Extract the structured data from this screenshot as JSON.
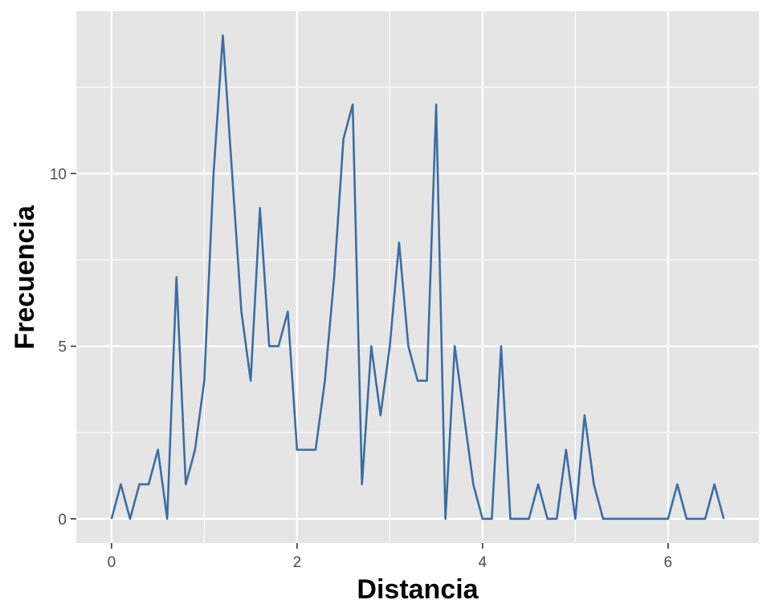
{
  "chart_data": {
    "type": "line",
    "title": "",
    "xlabel": "Distancia",
    "ylabel": "Frecuencia",
    "xlim": [
      -0.38,
      6.98
    ],
    "ylim": [
      -0.7,
      14.7
    ],
    "x_ticks": [
      0,
      2,
      4,
      6
    ],
    "y_ticks": [
      0,
      5,
      10
    ],
    "x_minor_ticks": [
      1,
      3,
      5
    ],
    "y_minor_ticks": [
      2.5,
      7.5,
      12.5
    ],
    "grid": true,
    "legend": "none",
    "colors": {
      "line": "#3a6ea5",
      "panel": "#e5e5e5",
      "grid": "#ffffff",
      "tick_text": "#4d4d4d"
    },
    "series": [
      {
        "x": [
          0,
          0.1,
          0.2,
          0.3,
          0.4,
          0.5,
          0.6,
          0.7,
          0.8,
          0.9,
          1.0,
          1.1,
          1.2,
          1.3,
          1.4,
          1.5,
          1.6,
          1.7,
          1.8,
          1.9,
          2.0,
          2.1,
          2.2,
          2.3,
          2.4,
          2.5,
          2.6,
          2.7,
          2.8,
          2.9,
          3.0,
          3.1,
          3.2,
          3.3,
          3.4,
          3.5,
          3.6,
          3.7,
          3.8,
          3.9,
          4.0,
          4.1,
          4.2,
          4.3,
          4.4,
          4.5,
          4.6,
          4.7,
          4.8,
          4.9,
          5.0,
          5.1,
          5.2,
          5.3,
          5.4,
          5.5,
          5.6,
          5.7,
          5.8,
          5.9,
          6.0,
          6.1,
          6.2,
          6.3,
          6.4,
          6.5,
          6.6
        ],
        "y": [
          0,
          1,
          0,
          1,
          1,
          2,
          0,
          7,
          1,
          2,
          4,
          10,
          14,
          10,
          6,
          4,
          9,
          5,
          5,
          6,
          2,
          2,
          2,
          4,
          7,
          11,
          12,
          1,
          5,
          3,
          5,
          8,
          5,
          4,
          4,
          12,
          0,
          5,
          3,
          1,
          0,
          0,
          5,
          0,
          0,
          0,
          1,
          0,
          0,
          2,
          0,
          3,
          1,
          0,
          0,
          0,
          0,
          0,
          0,
          0,
          0,
          1,
          0,
          0,
          0,
          1,
          0
        ]
      }
    ]
  }
}
